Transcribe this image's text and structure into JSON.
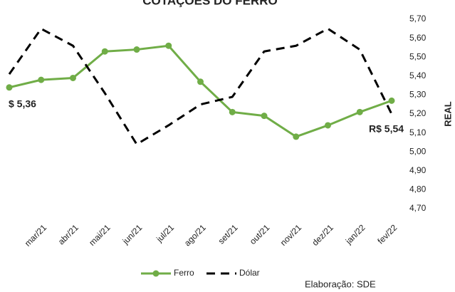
{
  "chart_data": {
    "type": "line",
    "title": "COTAÇÕES DO FERRO",
    "y_label": "REAL",
    "source": "Elaboração: SDE",
    "annotations": [
      "$ 5,36",
      "R$ 5,54"
    ],
    "categories": [
      null,
      "mar/21",
      "abr/21",
      "mai/21",
      "jun/21",
      "jul/21",
      "ago/21",
      "set/21",
      "out/21",
      "nov/21",
      "dez/21",
      "jan/22",
      "fev/22"
    ],
    "series": [
      {
        "name": "Ferro",
        "color": "#70ad47",
        "marker": true,
        "values": [
          5.34,
          5.38,
          5.39,
          5.53,
          5.54,
          5.56,
          5.37,
          5.21,
          5.19,
          5.08,
          5.14,
          5.21,
          5.27
        ]
      },
      {
        "name": "Dólar",
        "color": "#000000",
        "dashed": true,
        "values": [
          5.41,
          5.65,
          5.56,
          5.31,
          5.04,
          5.14,
          5.25,
          5.29,
          5.53,
          5.56,
          5.65,
          5.54,
          5.2
        ]
      }
    ],
    "ylim": [
      4.7,
      5.7
    ],
    "yticks": [
      {
        "value": 4.7,
        "label": "4,70"
      },
      {
        "value": 4.8,
        "label": "4,80"
      },
      {
        "value": 4.9,
        "label": "4,90"
      },
      {
        "value": 5.0,
        "label": "5,00"
      },
      {
        "value": 5.1,
        "label": "5,10"
      },
      {
        "value": 5.2,
        "label": "5,20"
      },
      {
        "value": 5.3,
        "label": "5,30"
      },
      {
        "value": 5.4,
        "label": "5,40"
      },
      {
        "value": 5.5,
        "label": "5,50"
      },
      {
        "value": 5.6,
        "label": "5,60"
      },
      {
        "value": 5.7,
        "label": "5,70"
      }
    ],
    "y_axis_side": "right",
    "grid": false,
    "legend": "bottom"
  }
}
